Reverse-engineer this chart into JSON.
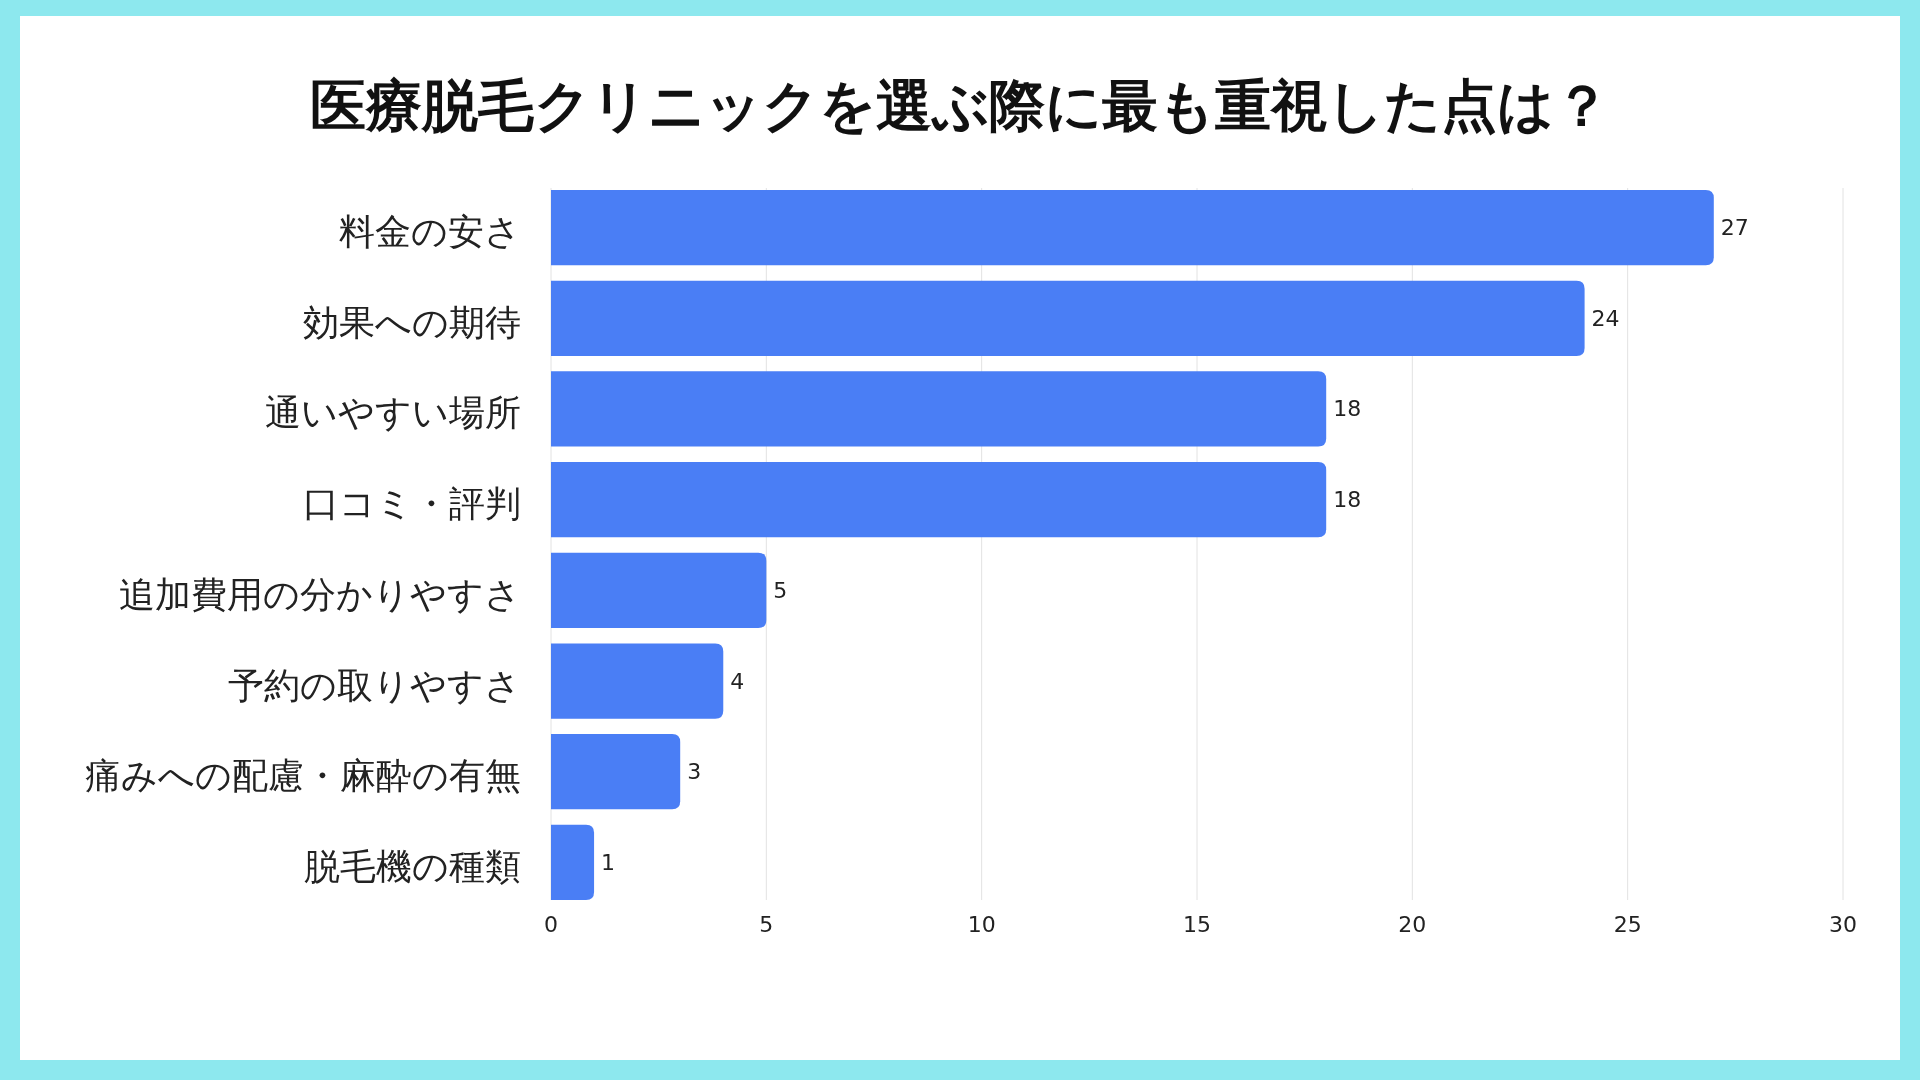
{
  "chart_data": {
    "type": "bar",
    "orientation": "horizontal",
    "title": "医療脱毛クリニックを選ぶ際に最も重視した点は？",
    "categories": [
      "料金の安さ",
      "効果への期待",
      "通いやすい場所",
      "口コミ・評判",
      "追加費用の分かりやすさ",
      "予約の取りやすさ",
      "痛みへの配慮・麻酔の有無",
      "脱毛機の種類"
    ],
    "values": [
      27,
      24,
      18,
      18,
      5,
      4,
      3,
      1
    ],
    "color": "#4a7ef5",
    "xlim": [
      0,
      30
    ],
    "xticks": [
      0,
      5,
      10,
      15,
      20,
      25,
      30
    ],
    "grid": "x",
    "data_labels": true
  }
}
